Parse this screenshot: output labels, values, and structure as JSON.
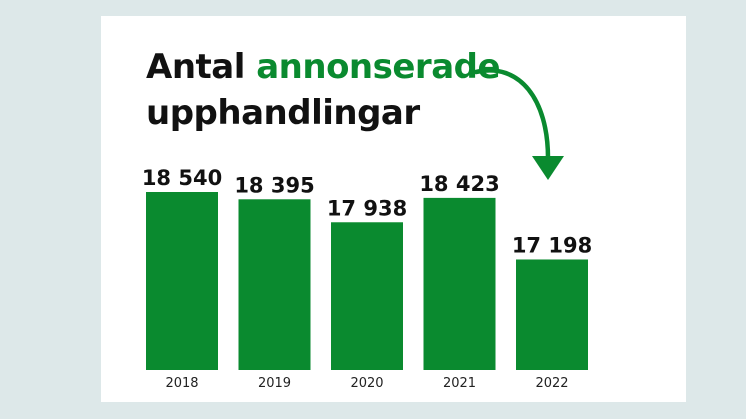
{
  "title": {
    "part1": "Antal",
    "accent": "annonserade",
    "part2": "upphandlingar"
  },
  "colors": {
    "bar": "#0a8a2f",
    "accent": "#0a8a2f",
    "background": "#dde8e9",
    "card": "#ffffff"
  },
  "chart_data": {
    "type": "bar",
    "categories": [
      "2018",
      "2019",
      "2020",
      "2021",
      "2022"
    ],
    "values": [
      18540,
      18395,
      17938,
      18423,
      17198
    ],
    "value_labels": [
      "18 540",
      "18 395",
      "17 938",
      "18 423",
      "17 198"
    ],
    "title": "Antal annonserade upphandlingar",
    "xlabel": "",
    "ylabel": "",
    "grid": false,
    "legend": "none",
    "decoration": "curved-arrow"
  }
}
